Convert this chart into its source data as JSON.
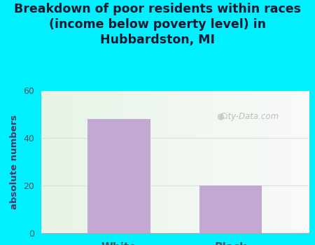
{
  "title": "Breakdown of poor residents within races\n(income below poverty level) in\nHubbardston, MI",
  "categories": [
    "White",
    "Black"
  ],
  "values": [
    48,
    20
  ],
  "bar_color": "#c4a8d4",
  "ylabel": "absolute numbers",
  "ylim": [
    0,
    60
  ],
  "yticks": [
    0,
    20,
    40,
    60
  ],
  "bg_outer": "#00f0ff",
  "grid_color": "#e8e8e8",
  "title_color": "#1a1a2e",
  "title_fontsize": 12.5,
  "axis_label_color": "#4a3a6a",
  "tick_label_color": "#555555",
  "watermark": "City-Data.com",
  "plot_bg_left": "#dff0d8",
  "plot_bg_right": "#f8fffa",
  "bar_positions": [
    0.25,
    0.75
  ]
}
